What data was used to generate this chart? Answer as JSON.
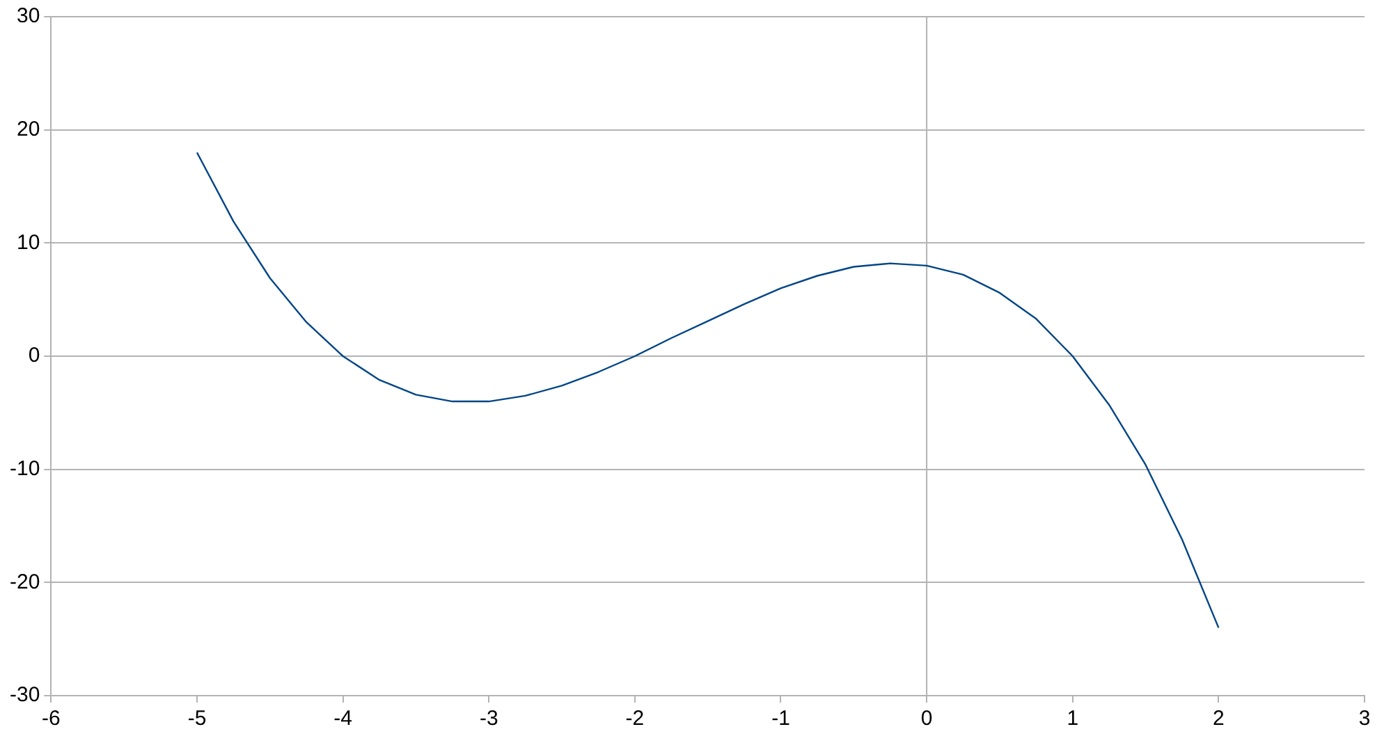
{
  "chart_data": {
    "type": "line",
    "x": [
      -5,
      -4.75,
      -4.5,
      -4.25,
      -4,
      -3.75,
      -3.5,
      -3.25,
      -3,
      -2.75,
      -2.5,
      -2.25,
      -2,
      -1.75,
      -1.5,
      -1.25,
      -1,
      -0.75,
      -0.5,
      -0.25,
      0,
      0.25,
      0.5,
      0.75,
      1,
      1.25,
      1.5,
      1.75,
      2
    ],
    "series": [
      {
        "color": "#004586",
        "values": [
          18,
          11.9,
          6.9,
          3,
          0,
          -2.1,
          -3.4,
          -4,
          -4,
          -3.5,
          -2.6,
          -1.4,
          0,
          1.6,
          3.1,
          4.6,
          6,
          7.1,
          7.9,
          8.2,
          8,
          7.2,
          5.6,
          3.3,
          0,
          -4.3,
          -9.6,
          -16.2,
          -24
        ]
      }
    ],
    "xlim": [
      -6,
      3
    ],
    "xticks": [
      -6,
      -5,
      -4,
      -3,
      -2,
      -1,
      0,
      1,
      2,
      3
    ],
    "ylim": [
      -30,
      30
    ],
    "yticks": [
      -30,
      -20,
      -10,
      0,
      10,
      20,
      30
    ],
    "grid": "y",
    "marker": "none",
    "line_style": "solid",
    "legend": false,
    "ref_lines": [
      {
        "axis": "x",
        "value": 0,
        "color": "#b3b3b3"
      }
    ]
  }
}
